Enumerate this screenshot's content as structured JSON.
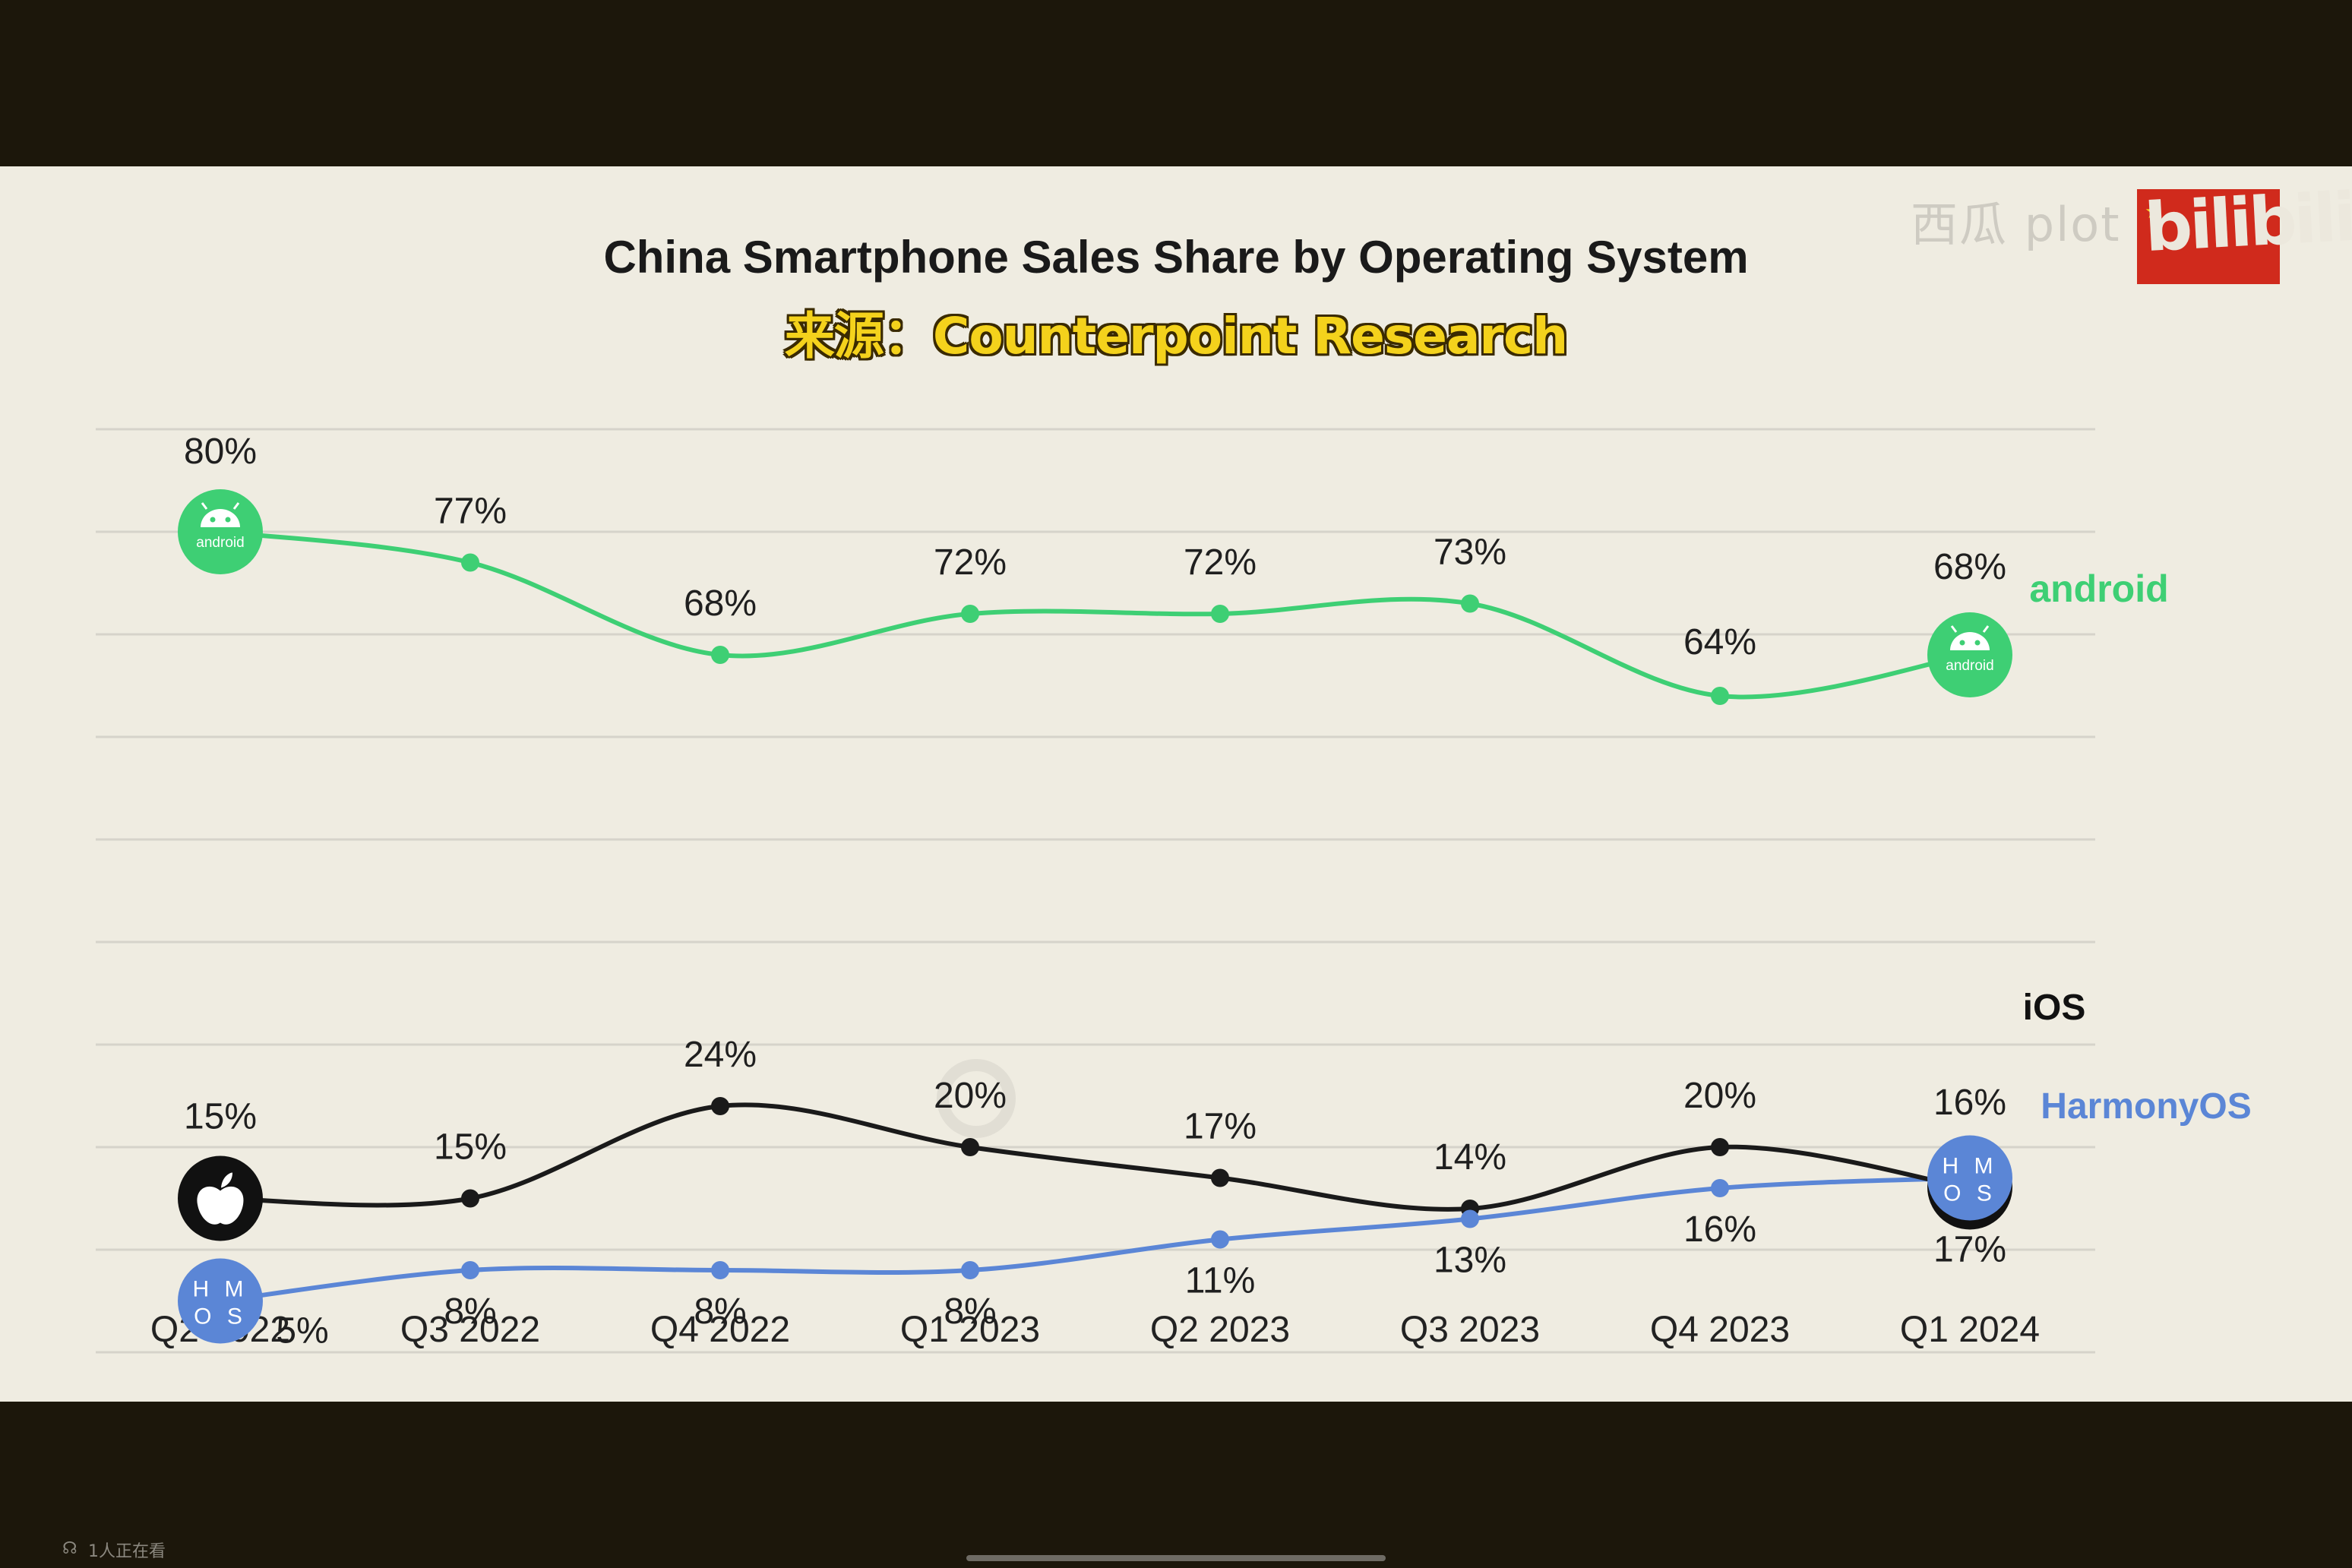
{
  "title": "China Smartphone Sales Share by Operating System",
  "subtitle": "来源：Counterpoint Research",
  "watermark": "西瓜 plot",
  "bili_logo": "bilibili",
  "viewer_count": "1人正在看",
  "colors": {
    "android": "#3ecf74",
    "ios": "#1a1a1a",
    "harmony": "#5b86d6",
    "grid": "#d6d3ca",
    "background": "#efece1"
  },
  "chart_data": {
    "type": "line",
    "title": "China Smartphone Sales Share by Operating System",
    "subtitle": "来源：Counterpoint Research",
    "categories": [
      "Q2 2022",
      "Q3 2022",
      "Q4 2022",
      "Q1 2023",
      "Q2 2023",
      "Q3 2023",
      "Q4 2023",
      "Q1 2024"
    ],
    "ylim": [
      0,
      90
    ],
    "grid": true,
    "series": [
      {
        "name": "android",
        "color": "#3ecf74",
        "values": [
          80,
          77,
          68,
          72,
          72,
          73,
          64,
          68
        ],
        "labels": [
          "80%",
          "77%",
          "68%",
          "72%",
          "72%",
          "73%",
          "64%",
          "68%"
        ],
        "label_position": "above",
        "icon": "android-icon",
        "icon_text": "android"
      },
      {
        "name": "iOS",
        "color": "#1a1a1a",
        "values": [
          15,
          15,
          24,
          20,
          17,
          14,
          20,
          16
        ],
        "labels": [
          "15%",
          "15%",
          "24%",
          "20%",
          "17%",
          "14%",
          "20%",
          "16%"
        ],
        "label_position": "above",
        "icon": "apple-icon"
      },
      {
        "name": "HarmonyOS",
        "color": "#5b86d6",
        "values": [
          5,
          8,
          8,
          8,
          11,
          13,
          16,
          17
        ],
        "labels": [
          "5%",
          "8%",
          "8%",
          "8%",
          "11%",
          "13%",
          "16%",
          "17%"
        ],
        "label_position": "below",
        "icon": "harmonyos-icon",
        "icon_text_top": "H M",
        "icon_text_bottom": "O S"
      }
    ]
  }
}
